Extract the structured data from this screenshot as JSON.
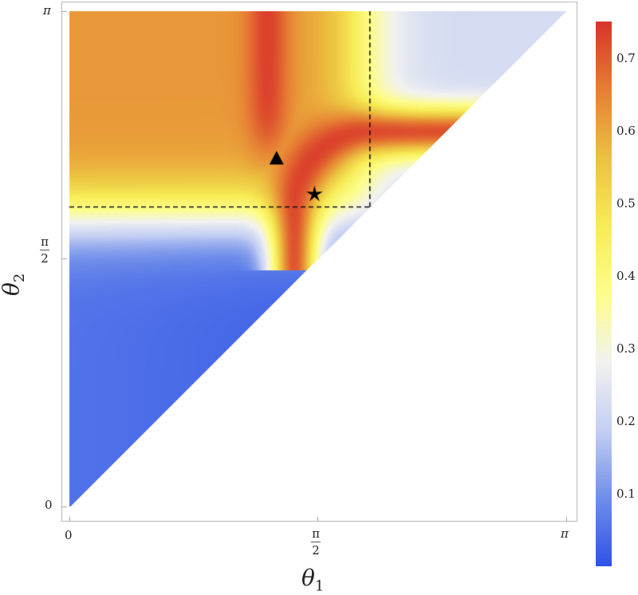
{
  "chart_data": {
    "type": "heatmap",
    "title": "",
    "xlabel": "θ1",
    "ylabel": "θ2",
    "xlim": [
      0,
      3.14159
    ],
    "ylim": [
      0,
      3.14159
    ],
    "x_ticks": [
      {
        "value": 0,
        "label": "0"
      },
      {
        "value": 1.5708,
        "label": "π/2"
      },
      {
        "value": 3.14159,
        "label": "π"
      }
    ],
    "y_ticks": [
      {
        "value": 0,
        "label": "0"
      },
      {
        "value": 1.5708,
        "label": "π/2"
      },
      {
        "value": 3.14159,
        "label": "π"
      }
    ],
    "domain": "upper triangle θ2 ≥ θ1",
    "colorbar": {
      "range": [
        0.0,
        0.75
      ],
      "ticks": [
        "0.1",
        "0.2",
        "0.3",
        "0.4",
        "0.5",
        "0.6",
        "0.7"
      ],
      "colors": [
        "#2e52e8",
        "#6f8ee9",
        "#c4cff3",
        "#f2f2f0",
        "#fdfd8a",
        "#f7ec56",
        "#ecc040",
        "#e67e33",
        "#d8332a"
      ]
    },
    "regions": {
      "upper_left_value": 0.62,
      "lower_left_value": 0.05,
      "upper_right_value": 0.22,
      "ridge_value": 0.74
    },
    "annotations": [
      {
        "type": "triangle-marker",
        "theta1": 1.31,
        "theta2": 2.21
      },
      {
        "type": "star-marker",
        "theta1": 1.55,
        "theta2": 1.98
      },
      {
        "type": "dashed-line-horizontal",
        "theta2": 1.9,
        "theta1_range": [
          0,
          1.9
        ]
      },
      {
        "type": "dashed-line-vertical",
        "theta1": 1.9,
        "theta2_range": [
          1.9,
          3.14159
        ]
      }
    ]
  },
  "labels": {
    "x_axis": "θ",
    "x_sub": "1",
    "y_axis": "θ",
    "y_sub": "2",
    "x_tick_0": "0",
    "x_tick_pi": "π",
    "y_tick_0": "0",
    "y_tick_pi": "π",
    "pi": "π",
    "two": "2"
  }
}
